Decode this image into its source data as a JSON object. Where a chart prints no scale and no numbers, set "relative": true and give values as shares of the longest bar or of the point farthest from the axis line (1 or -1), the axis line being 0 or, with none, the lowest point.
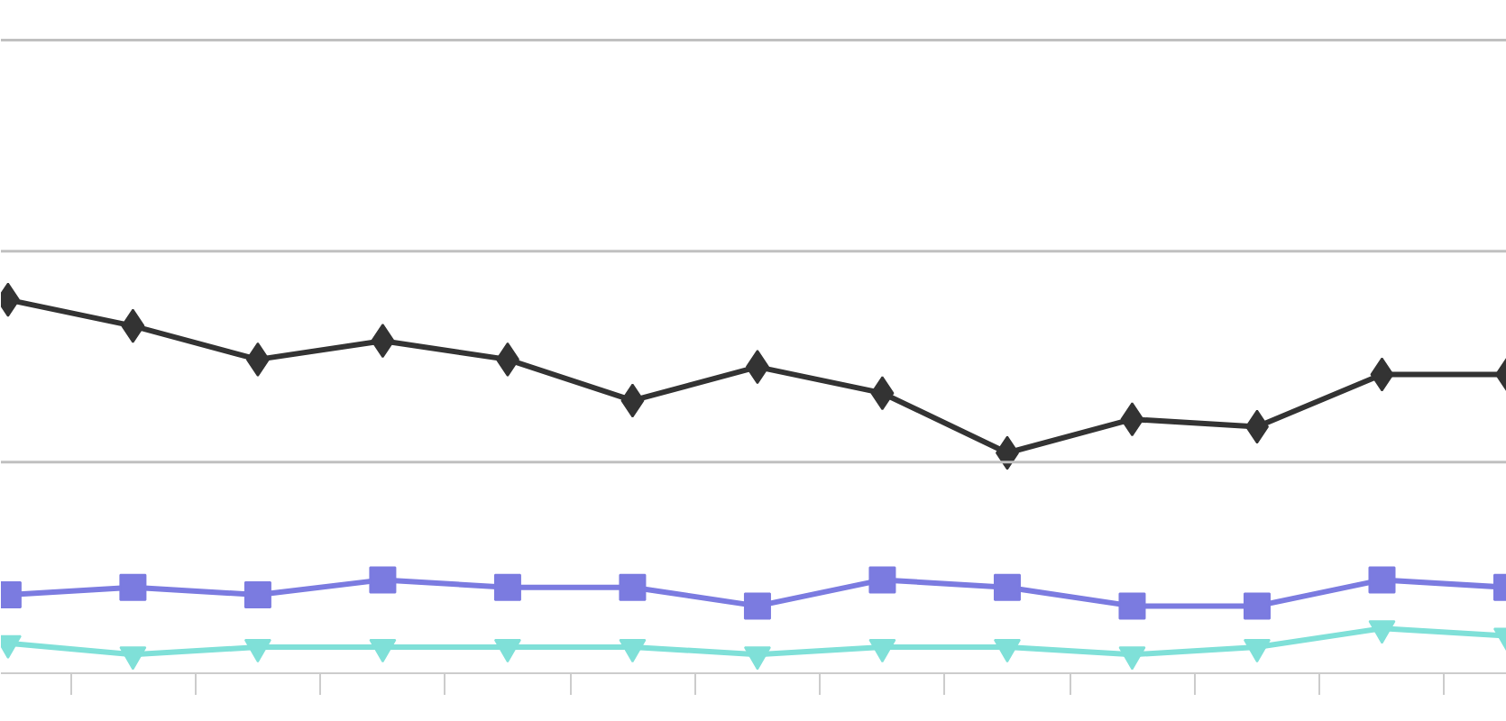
{
  "chart_data": {
    "type": "line",
    "relative": true,
    "tick_labels": false,
    "ref_lines": [
      {
        "axis": "y",
        "value": 0.565,
        "color": "#c0c0c0"
      },
      {
        "axis": "y",
        "value": 1.13,
        "color": "#c0c0c0"
      },
      {
        "axis": "y",
        "value": 1.695,
        "color": "#c0c0c0"
      }
    ],
    "line_style": "solid",
    "categories": [
      null,
      null,
      null,
      null,
      null,
      null,
      null,
      null,
      null,
      null,
      null,
      null,
      null
    ],
    "series": [
      {
        "color": "#333333",
        "marker": "diamond",
        "values": [
          1,
          0.93,
          0.84,
          0.89,
          0.84,
          0.73,
          0.82,
          0.75,
          0.59,
          0.68,
          0.66,
          0.8,
          0.8
        ]
      },
      {
        "color": "#7b7be0",
        "marker": "square",
        "values": [
          0.21,
          0.23,
          0.21,
          0.25,
          0.23,
          0.23,
          0.18,
          0.25,
          0.23,
          0.18,
          0.18,
          0.25,
          0.23
        ]
      },
      {
        "color": "#7fe0d8",
        "marker": "triangle",
        "values": [
          0.08,
          0.05,
          0.07,
          0.07,
          0.07,
          0.07,
          0.05,
          0.07,
          0.07,
          0.05,
          0.07,
          0.12,
          0.1
        ]
      }
    ]
  }
}
